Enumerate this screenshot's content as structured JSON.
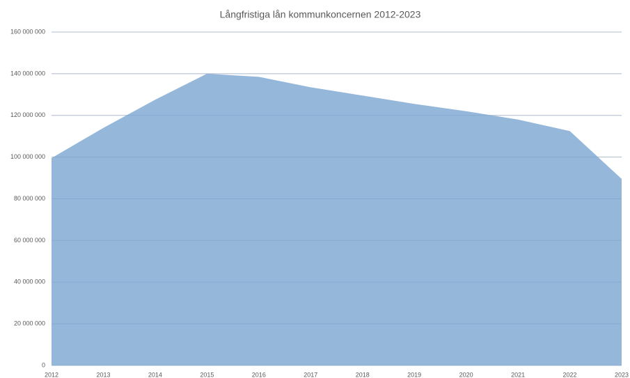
{
  "chart_data": {
    "type": "area",
    "title": "Långfristiga lån kommunkoncernen 2012-2023",
    "categories": [
      "2012",
      "2013",
      "2014",
      "2015",
      "2016",
      "2017",
      "2018",
      "2019",
      "2020",
      "2021",
      "2022",
      "2023"
    ],
    "values": [
      99500000,
      114000000,
      127500000,
      140000000,
      138500000,
      133500000,
      129500000,
      125500000,
      122000000,
      118000000,
      112500000,
      89500000
    ],
    "color": "#95b7da",
    "ylim": [
      0,
      160000000
    ],
    "yticks": [
      0,
      {
        "value": 20000000,
        "label": "20 000 000"
      },
      {
        "value": 40000000,
        "label": "40 000 000"
      },
      {
        "value": 60000000,
        "label": "60 000 000"
      },
      {
        "value": 80000000,
        "label": "80 000 000"
      },
      {
        "value": 100000000,
        "label": "100 000 000"
      },
      {
        "value": 120000000,
        "label": "120 000 000"
      },
      {
        "value": 140000000,
        "label": "140 000 000"
      },
      {
        "value": 160000000,
        "label": "160 000 000"
      }
    ],
    "grid": true
  }
}
